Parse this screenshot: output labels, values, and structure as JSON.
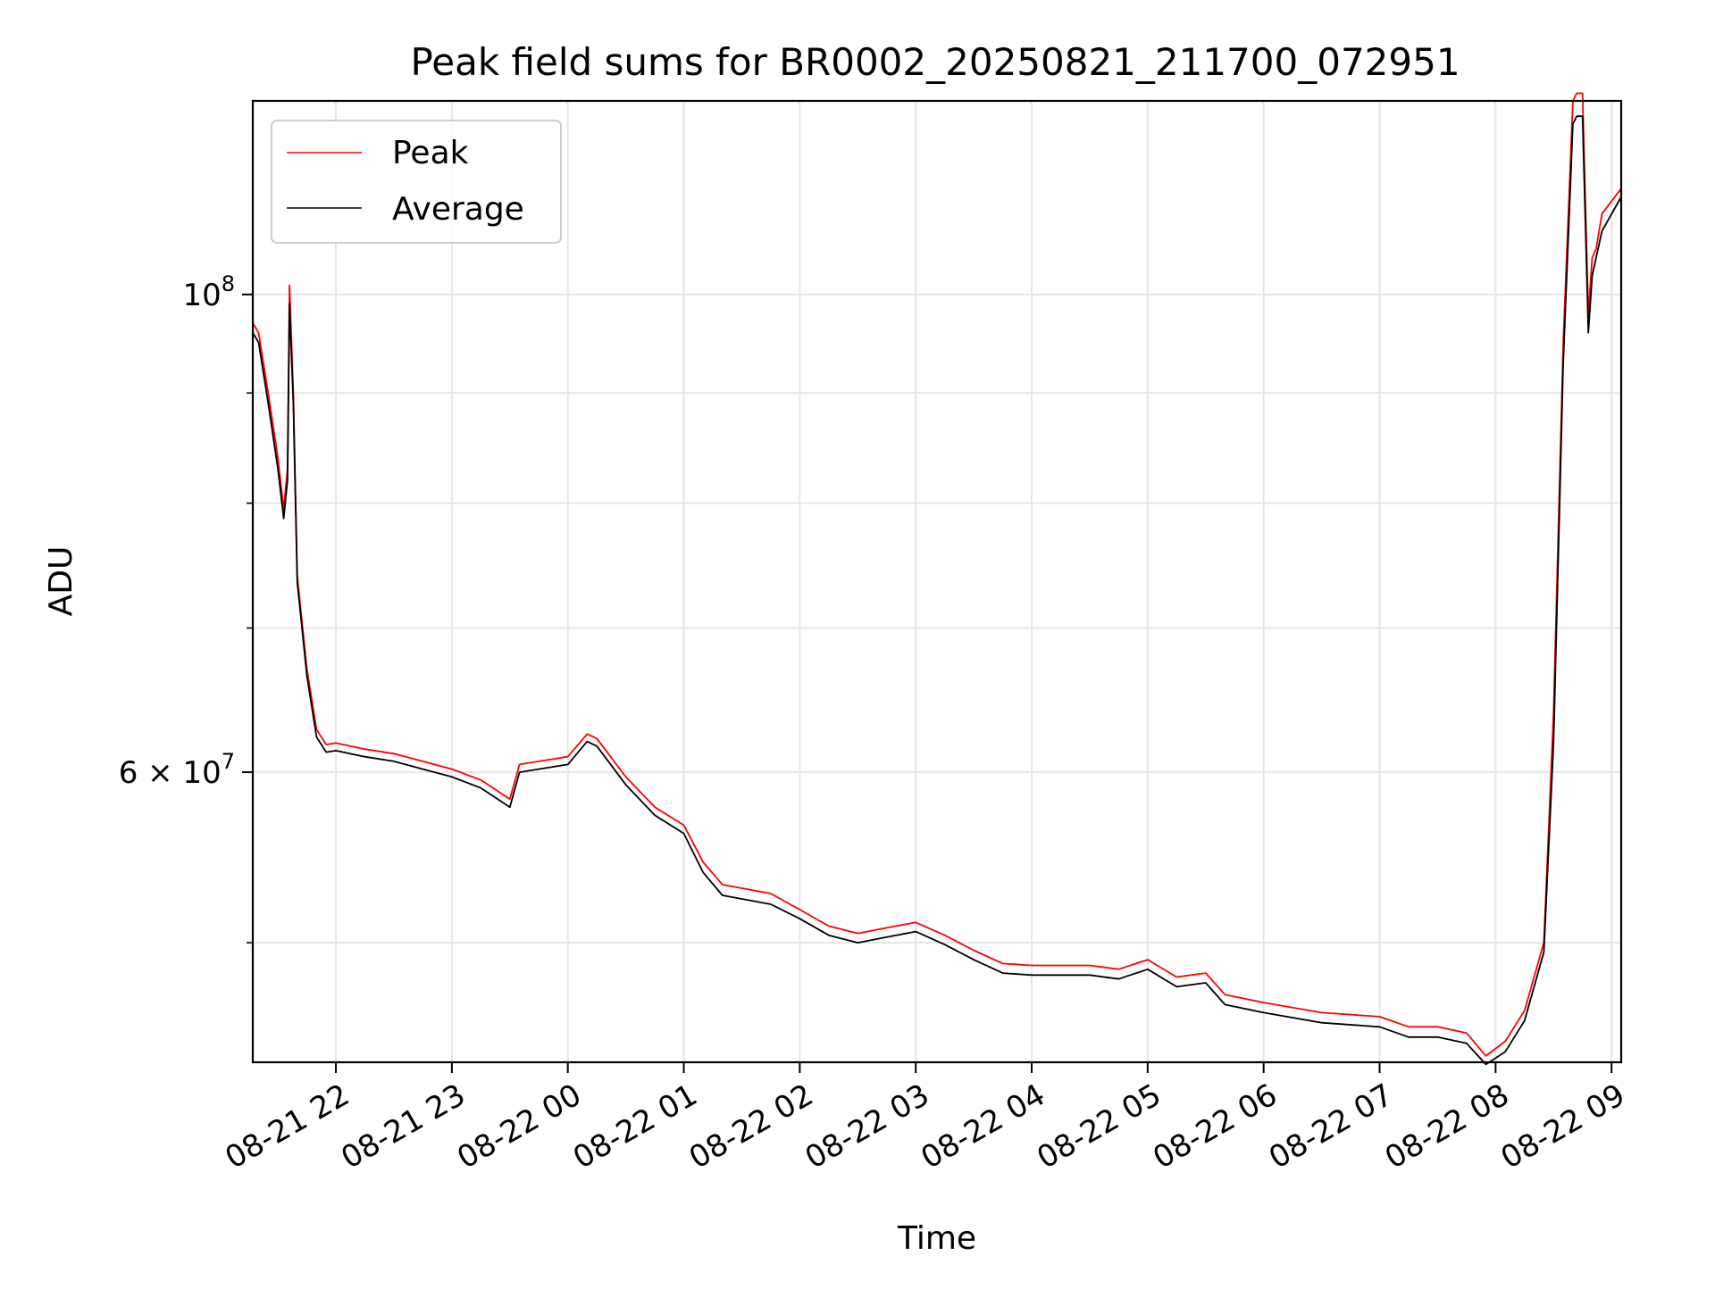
{
  "chart_data": {
    "type": "line",
    "title": "Peak field sums for BR0002_20250821_211700_072951",
    "xlabel": "Time",
    "ylabel": "ADU",
    "yscale": "log",
    "ylim": [
      44000000,
      123000000
    ],
    "xlim": [
      "2025-08-21 21:17",
      "2025-08-22 09:05"
    ],
    "grid": true,
    "legend": "upper-left",
    "x_ticks": [
      {
        "value": "2025-08-21 22:00",
        "label": "08-21 22"
      },
      {
        "value": "2025-08-21 23:00",
        "label": "08-21 23"
      },
      {
        "value": "2025-08-22 00:00",
        "label": "08-22 00"
      },
      {
        "value": "2025-08-22 01:00",
        "label": "08-22 01"
      },
      {
        "value": "2025-08-22 02:00",
        "label": "08-22 02"
      },
      {
        "value": "2025-08-22 03:00",
        "label": "08-22 03"
      },
      {
        "value": "2025-08-22 04:00",
        "label": "08-22 04"
      },
      {
        "value": "2025-08-22 05:00",
        "label": "08-22 05"
      },
      {
        "value": "2025-08-22 06:00",
        "label": "08-22 06"
      },
      {
        "value": "2025-08-22 07:00",
        "label": "08-22 07"
      },
      {
        "value": "2025-08-22 08:00",
        "label": "08-22 08"
      },
      {
        "value": "2025-08-22 09:00",
        "label": "08-22 09"
      }
    ],
    "y_major_ticks": [
      {
        "value": 60000000,
        "mantissa": "6",
        "times": "×",
        "base": "10",
        "exp": "7"
      },
      {
        "value": 100000000,
        "mantissa": "",
        "times": "",
        "base": "10",
        "exp": "8"
      }
    ],
    "y_minor_ticks": [
      50000000,
      70000000,
      80000000,
      90000000
    ],
    "series": [
      {
        "name": "Peak",
        "color": "#ff0000",
        "x": [
          "2025-08-21 21:17",
          "2025-08-21 21:20",
          "2025-08-21 21:25",
          "2025-08-21 21:30",
          "2025-08-21 21:33",
          "2025-08-21 21:35",
          "2025-08-21 21:36",
          "2025-08-21 21:38",
          "2025-08-21 21:40",
          "2025-08-21 21:45",
          "2025-08-21 21:50",
          "2025-08-21 21:55",
          "2025-08-21 22:00",
          "2025-08-21 22:15",
          "2025-08-21 22:30",
          "2025-08-21 22:45",
          "2025-08-21 23:00",
          "2025-08-21 23:15",
          "2025-08-21 23:30",
          "2025-08-21 23:35",
          "2025-08-21 23:45",
          "2025-08-22 00:00",
          "2025-08-22 00:10",
          "2025-08-22 00:15",
          "2025-08-22 00:30",
          "2025-08-22 00:45",
          "2025-08-22 01:00",
          "2025-08-22 01:10",
          "2025-08-22 01:20",
          "2025-08-22 01:30",
          "2025-08-22 01:45",
          "2025-08-22 02:00",
          "2025-08-22 02:15",
          "2025-08-22 02:30",
          "2025-08-22 02:45",
          "2025-08-22 03:00",
          "2025-08-22 03:15",
          "2025-08-22 03:30",
          "2025-08-22 03:45",
          "2025-08-22 04:00",
          "2025-08-22 04:30",
          "2025-08-22 04:45",
          "2025-08-22 05:00",
          "2025-08-22 05:15",
          "2025-08-22 05:30",
          "2025-08-22 05:40",
          "2025-08-22 06:00",
          "2025-08-22 06:30",
          "2025-08-22 07:00",
          "2025-08-22 07:15",
          "2025-08-22 07:30",
          "2025-08-22 07:45",
          "2025-08-22 07:55",
          "2025-08-22 08:05",
          "2025-08-22 08:15",
          "2025-08-22 08:25",
          "2025-08-22 08:30",
          "2025-08-22 08:35",
          "2025-08-22 08:40",
          "2025-08-22 08:42",
          "2025-08-22 08:45",
          "2025-08-22 08:48",
          "2025-08-22 08:50",
          "2025-08-22 08:52",
          "2025-08-22 08:55",
          "2025-08-22 09:05"
        ],
        "y": [
          97000000,
          96000000,
          90000000,
          84000000,
          79500000,
          83000000,
          101000000,
          90000000,
          74000000,
          67000000,
          62800000,
          61800000,
          61900000,
          61500000,
          61200000,
          60700000,
          60200000,
          59500000,
          58300000,
          60500000,
          60700000,
          61000000,
          62500000,
          62200000,
          59700000,
          57800000,
          56700000,
          54500000,
          53200000,
          53000000,
          52700000,
          51800000,
          50900000,
          50500000,
          50800000,
          51100000,
          50400000,
          49600000,
          48900000,
          48800000,
          48800000,
          48600000,
          49100000,
          48200000,
          48400000,
          47300000,
          46900000,
          46400000,
          46200000,
          45700000,
          45700000,
          45400000,
          44300000,
          45000000,
          46500000,
          50000000,
          64000000,
          95000000,
          123000000,
          124000000,
          124000000,
          98000000,
          104000000,
          105000000,
          109000000,
          112000000
        ]
      },
      {
        "name": "Average",
        "color": "#000000",
        "x": [
          "2025-08-21 21:17",
          "2025-08-21 21:20",
          "2025-08-21 21:25",
          "2025-08-21 21:30",
          "2025-08-21 21:33",
          "2025-08-21 21:35",
          "2025-08-21 21:36",
          "2025-08-21 21:38",
          "2025-08-21 21:40",
          "2025-08-21 21:45",
          "2025-08-21 21:50",
          "2025-08-21 21:55",
          "2025-08-21 22:00",
          "2025-08-21 22:15",
          "2025-08-21 22:30",
          "2025-08-21 22:45",
          "2025-08-21 23:00",
          "2025-08-21 23:15",
          "2025-08-21 23:30",
          "2025-08-21 23:35",
          "2025-08-21 23:45",
          "2025-08-22 00:00",
          "2025-08-22 00:10",
          "2025-08-22 00:15",
          "2025-08-22 00:30",
          "2025-08-22 00:45",
          "2025-08-22 01:00",
          "2025-08-22 01:10",
          "2025-08-22 01:20",
          "2025-08-22 01:30",
          "2025-08-22 01:45",
          "2025-08-22 02:00",
          "2025-08-22 02:15",
          "2025-08-22 02:30",
          "2025-08-22 02:45",
          "2025-08-22 03:00",
          "2025-08-22 03:15",
          "2025-08-22 03:30",
          "2025-08-22 03:45",
          "2025-08-22 04:00",
          "2025-08-22 04:30",
          "2025-08-22 04:45",
          "2025-08-22 05:00",
          "2025-08-22 05:15",
          "2025-08-22 05:30",
          "2025-08-22 05:40",
          "2025-08-22 06:00",
          "2025-08-22 06:30",
          "2025-08-22 07:00",
          "2025-08-22 07:15",
          "2025-08-22 07:30",
          "2025-08-22 07:45",
          "2025-08-22 07:55",
          "2025-08-22 08:05",
          "2025-08-22 08:15",
          "2025-08-22 08:25",
          "2025-08-22 08:30",
          "2025-08-22 08:35",
          "2025-08-22 08:40",
          "2025-08-22 08:42",
          "2025-08-22 08:45",
          "2025-08-22 08:48",
          "2025-08-22 08:50",
          "2025-08-22 08:52",
          "2025-08-22 08:55",
          "2025-08-22 09:05"
        ],
        "y": [
          96000000,
          95000000,
          89000000,
          83000000,
          78700000,
          82000000,
          99000000,
          89000000,
          73500000,
          66500000,
          62300000,
          61300000,
          61400000,
          61000000,
          60700000,
          60200000,
          59700000,
          59000000,
          57800000,
          60000000,
          60200000,
          60500000,
          62000000,
          61700000,
          59200000,
          57300000,
          56200000,
          53900000,
          52600000,
          52400000,
          52100000,
          51300000,
          50400000,
          50000000,
          50300000,
          50600000,
          49900000,
          49100000,
          48400000,
          48300000,
          48300000,
          48100000,
          48600000,
          47700000,
          47900000,
          46800000,
          46400000,
          45900000,
          45700000,
          45200000,
          45200000,
          44900000,
          43900000,
          44500000,
          46000000,
          49500000,
          62000000,
          93000000,
          120000000,
          121000000,
          121000000,
          96000000,
          102000000,
          104000000,
          107000000,
          111000000
        ]
      }
    ]
  }
}
